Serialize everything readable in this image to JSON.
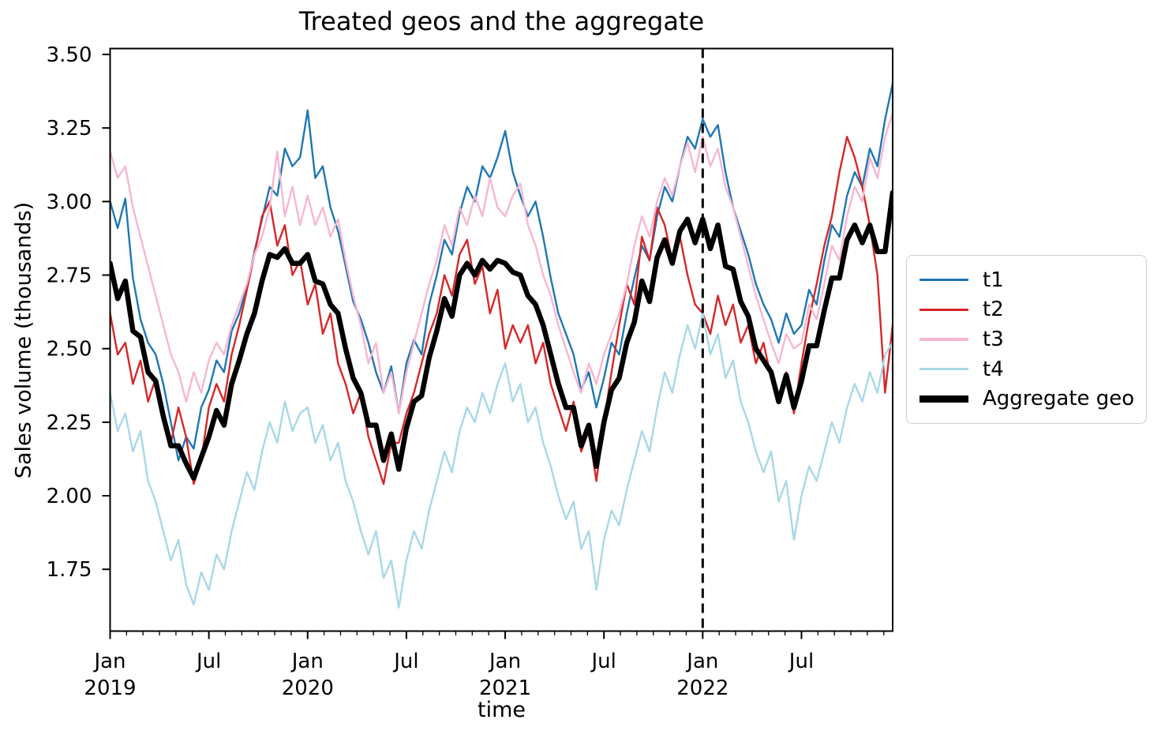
{
  "figure": {
    "title": "Treated geos and the aggregate",
    "xlabel": "time",
    "ylabel": "Sales volume (thousands)"
  },
  "chart_data": {
    "type": "line",
    "title": "Treated geos and the aggregate",
    "xlabel": "time",
    "ylabel": "Sales volume (thousands)",
    "x_start": "2019-01",
    "x_end": "2022-12",
    "points_per_year": 26,
    "ylim": [
      1.54,
      3.52
    ],
    "yticks": [
      3.5,
      3.25,
      3.0,
      2.75,
      2.5,
      2.25,
      2.0,
      1.75
    ],
    "xticks": [
      {
        "t": 0.0,
        "line1": "Jan",
        "line2": "2019"
      },
      {
        "t": 0.5,
        "line1": "Jul",
        "line2": ""
      },
      {
        "t": 1.0,
        "line1": "Jan",
        "line2": "2020"
      },
      {
        "t": 1.5,
        "line1": "Jul",
        "line2": ""
      },
      {
        "t": 2.0,
        "line1": "Jan",
        "line2": "2021"
      },
      {
        "t": 2.5,
        "line1": "Jul",
        "line2": ""
      },
      {
        "t": 3.0,
        "line1": "Jan",
        "line2": "2022"
      },
      {
        "t": 3.5,
        "line1": "Jul",
        "line2": ""
      }
    ],
    "minor_ticks": "monthly",
    "grid": false,
    "legend_position": "center right, outside axes",
    "event_line": {
      "t": 3.0,
      "date": "2022-01",
      "style": "dashed",
      "color": "#000000"
    },
    "series": [
      {
        "name": "t1",
        "color": "#1f77b4",
        "line_width": 2.4,
        "values": [
          3.0,
          2.91,
          3.01,
          2.74,
          2.6,
          2.52,
          2.48,
          2.38,
          2.25,
          2.12,
          2.2,
          2.16,
          2.3,
          2.36,
          2.46,
          2.42,
          2.56,
          2.62,
          2.71,
          2.83,
          2.94,
          3.05,
          3.02,
          3.18,
          3.12,
          3.15,
          3.31,
          3.08,
          3.12,
          2.98,
          2.9,
          2.78,
          2.66,
          2.6,
          2.52,
          2.42,
          2.35,
          2.44,
          2.28,
          2.45,
          2.53,
          2.48,
          2.65,
          2.75,
          2.87,
          2.82,
          2.96,
          3.05,
          3.0,
          3.12,
          3.08,
          3.15,
          3.24,
          3.1,
          3.02,
          2.95,
          3.0,
          2.88,
          2.74,
          2.62,
          2.55,
          2.48,
          2.36,
          2.42,
          2.3,
          2.4,
          2.52,
          2.48,
          2.62,
          2.74,
          2.85,
          2.8,
          2.95,
          3.05,
          3.0,
          3.12,
          3.22,
          3.18,
          3.28,
          3.22,
          3.26,
          3.1,
          2.98,
          2.9,
          2.82,
          2.72,
          2.65,
          2.6,
          2.52,
          2.62,
          2.55,
          2.58,
          2.7,
          2.65,
          2.8,
          2.92,
          2.88,
          3.02,
          3.1,
          3.05,
          3.18,
          3.12,
          3.28,
          3.4
        ]
      },
      {
        "name": "t2",
        "color": "#d62728",
        "line_width": 2.4,
        "values": [
          2.62,
          2.48,
          2.52,
          2.38,
          2.46,
          2.32,
          2.4,
          2.25,
          2.18,
          2.3,
          2.2,
          2.04,
          2.12,
          2.3,
          2.38,
          2.32,
          2.48,
          2.58,
          2.7,
          2.82,
          2.95,
          3.0,
          2.85,
          2.92,
          2.75,
          2.8,
          2.65,
          2.72,
          2.55,
          2.62,
          2.45,
          2.38,
          2.28,
          2.35,
          2.2,
          2.12,
          2.04,
          2.18,
          2.18,
          2.28,
          2.35,
          2.45,
          2.55,
          2.62,
          2.75,
          2.68,
          2.82,
          2.87,
          2.72,
          2.78,
          2.62,
          2.7,
          2.5,
          2.58,
          2.52,
          2.58,
          2.45,
          2.52,
          2.38,
          2.3,
          2.22,
          2.32,
          2.15,
          2.22,
          2.05,
          2.25,
          2.42,
          2.58,
          2.72,
          2.65,
          2.88,
          2.8,
          2.98,
          2.92,
          2.8,
          2.88,
          2.75,
          2.65,
          2.62,
          2.55,
          2.68,
          2.58,
          2.65,
          2.52,
          2.58,
          2.45,
          2.52,
          2.4,
          2.32,
          2.42,
          2.28,
          2.45,
          2.6,
          2.72,
          2.85,
          2.95,
          3.1,
          3.22,
          3.15,
          3.05,
          2.92,
          2.75,
          2.35,
          2.58
        ]
      },
      {
        "name": "t3",
        "color": "#f7b6d2",
        "line_width": 2.4,
        "values": [
          3.17,
          3.08,
          3.12,
          2.98,
          2.88,
          2.78,
          2.68,
          2.58,
          2.48,
          2.42,
          2.32,
          2.42,
          2.35,
          2.46,
          2.52,
          2.48,
          2.58,
          2.65,
          2.72,
          2.82,
          2.88,
          2.98,
          3.17,
          2.95,
          3.05,
          2.92,
          3.02,
          2.92,
          2.98,
          2.88,
          2.94,
          2.8,
          2.68,
          2.58,
          2.45,
          2.52,
          2.35,
          2.42,
          2.28,
          2.42,
          2.52,
          2.62,
          2.72,
          2.8,
          2.92,
          2.85,
          2.98,
          2.92,
          3.02,
          2.95,
          3.08,
          2.98,
          2.95,
          3.02,
          3.06,
          2.92,
          2.85,
          2.75,
          2.68,
          2.58,
          2.5,
          2.42,
          2.35,
          2.45,
          2.38,
          2.48,
          2.55,
          2.62,
          2.72,
          2.85,
          2.95,
          2.88,
          3.0,
          3.08,
          3.02,
          3.12,
          3.2,
          3.1,
          3.22,
          3.12,
          3.18,
          3.05,
          2.98,
          2.88,
          2.78,
          2.68,
          2.6,
          2.52,
          2.45,
          2.55,
          2.5,
          2.52,
          2.65,
          2.6,
          2.72,
          2.85,
          2.8,
          2.95,
          3.05,
          3.0,
          3.15,
          3.08,
          3.22,
          3.3
        ]
      },
      {
        "name": "t4",
        "color": "#a8d8e6",
        "line_width": 2.4,
        "values": [
          2.35,
          2.22,
          2.28,
          2.15,
          2.22,
          2.05,
          1.98,
          1.88,
          1.78,
          1.85,
          1.7,
          1.63,
          1.74,
          1.68,
          1.8,
          1.75,
          1.88,
          1.98,
          2.08,
          2.02,
          2.15,
          2.25,
          2.18,
          2.32,
          2.22,
          2.28,
          2.3,
          2.18,
          2.24,
          2.12,
          2.18,
          2.05,
          1.98,
          1.88,
          1.8,
          1.88,
          1.72,
          1.78,
          1.62,
          1.78,
          1.88,
          1.82,
          1.95,
          2.05,
          2.15,
          2.08,
          2.22,
          2.3,
          2.25,
          2.35,
          2.28,
          2.38,
          2.45,
          2.32,
          2.38,
          2.25,
          2.3,
          2.18,
          2.1,
          2.0,
          1.92,
          1.98,
          1.82,
          1.88,
          1.68,
          1.85,
          1.95,
          1.9,
          2.02,
          2.12,
          2.22,
          2.15,
          2.3,
          2.42,
          2.35,
          2.48,
          2.58,
          2.5,
          2.62,
          2.48,
          2.55,
          2.4,
          2.46,
          2.32,
          2.25,
          2.15,
          2.08,
          2.15,
          1.98,
          2.05,
          1.85,
          2.0,
          2.1,
          2.05,
          2.15,
          2.25,
          2.18,
          2.3,
          2.38,
          2.32,
          2.42,
          2.35,
          2.48,
          2.52
        ]
      },
      {
        "name": "Aggregate geo",
        "color": "#000000",
        "line_width": 6.5,
        "values": [
          2.79,
          2.67,
          2.73,
          2.56,
          2.54,
          2.42,
          2.39,
          2.27,
          2.17,
          2.17,
          2.11,
          2.06,
          2.13,
          2.2,
          2.29,
          2.24,
          2.38,
          2.46,
          2.55,
          2.62,
          2.73,
          2.82,
          2.81,
          2.84,
          2.79,
          2.79,
          2.82,
          2.73,
          2.72,
          2.65,
          2.62,
          2.5,
          2.4,
          2.35,
          2.24,
          2.24,
          2.12,
          2.21,
          2.09,
          2.23,
          2.32,
          2.34,
          2.47,
          2.56,
          2.67,
          2.61,
          2.75,
          2.79,
          2.75,
          2.8,
          2.77,
          2.8,
          2.79,
          2.76,
          2.75,
          2.68,
          2.65,
          2.58,
          2.48,
          2.38,
          2.3,
          2.3,
          2.17,
          2.24,
          2.1,
          2.25,
          2.36,
          2.4,
          2.52,
          2.59,
          2.73,
          2.66,
          2.81,
          2.87,
          2.79,
          2.9,
          2.94,
          2.86,
          2.94,
          2.84,
          2.92,
          2.78,
          2.77,
          2.66,
          2.61,
          2.5,
          2.46,
          2.42,
          2.32,
          2.41,
          2.3,
          2.39,
          2.51,
          2.51,
          2.63,
          2.74,
          2.74,
          2.87,
          2.92,
          2.86,
          2.92,
          2.83,
          2.83,
          3.03
        ]
      }
    ]
  }
}
